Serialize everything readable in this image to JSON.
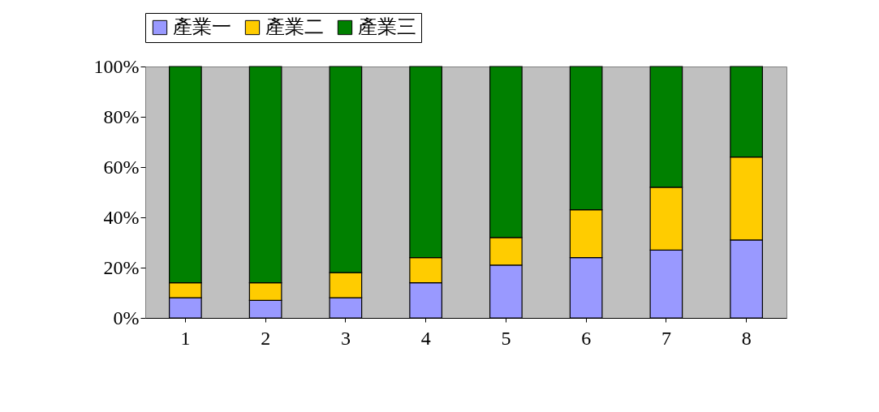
{
  "chart_data": {
    "type": "bar",
    "stacked": true,
    "categories": [
      "1",
      "2",
      "3",
      "4",
      "5",
      "6",
      "7",
      "8"
    ],
    "series": [
      {
        "name": "產業一",
        "color": "#9999ff",
        "values": [
          8,
          7,
          8,
          14,
          21,
          24,
          27,
          31
        ]
      },
      {
        "name": "產業二",
        "color": "#ffcc00",
        "values": [
          6,
          7,
          10,
          10,
          11,
          19,
          25,
          33
        ]
      },
      {
        "name": "產業三",
        "color": "#008000",
        "values": [
          86,
          86,
          82,
          76,
          68,
          57,
          48,
          36
        ]
      }
    ],
    "ylim": [
      0,
      100
    ],
    "yticks": [
      {
        "value": 0,
        "label": "0%"
      },
      {
        "value": 20,
        "label": "20%"
      },
      {
        "value": 40,
        "label": "40%"
      },
      {
        "value": 60,
        "label": "60%"
      },
      {
        "value": 80,
        "label": "80%"
      },
      {
        "value": 100,
        "label": "100%"
      }
    ],
    "grid": false,
    "legend": "top"
  }
}
